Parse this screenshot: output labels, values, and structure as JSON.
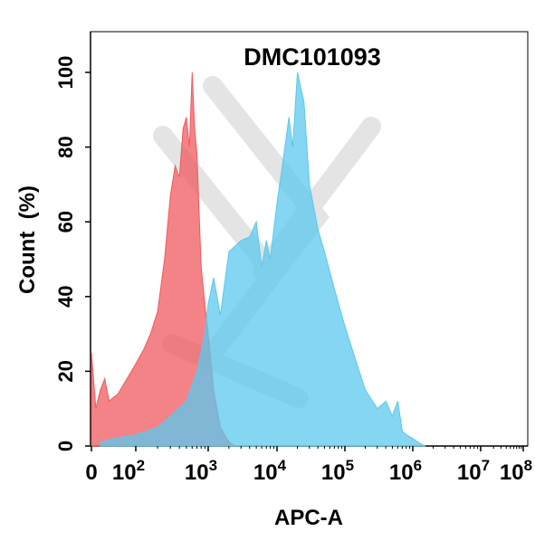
{
  "chart_data": {
    "type": "area",
    "title": "DMC101093",
    "xlabel": "APC-A",
    "ylabel": "Count  (%)",
    "xscale": "biexponential",
    "xlim": [
      0,
      100000000
    ],
    "ylim": [
      0,
      105
    ],
    "grid": false,
    "x_ticks": [
      {
        "label": "0",
        "exp": ""
      },
      {
        "label": "10",
        "exp": "2"
      },
      {
        "label": "10",
        "exp": "3"
      },
      {
        "label": "10",
        "exp": "4"
      },
      {
        "label": "10",
        "exp": "5"
      },
      {
        "label": "10",
        "exp": "6"
      },
      {
        "label": "10",
        "exp": "7"
      },
      {
        "label": "10",
        "exp": "8"
      }
    ],
    "y_ticks": [
      "0",
      "20",
      "40",
      "60",
      "80",
      "100"
    ],
    "series": [
      {
        "color": "#f05a5f",
        "x": [
          0,
          10,
          20,
          30,
          40,
          60,
          80,
          100,
          130,
          160,
          200,
          250,
          300,
          350,
          400,
          450,
          500,
          550,
          600,
          650,
          700,
          750,
          800,
          900,
          1000,
          1200,
          1500,
          2000,
          2500
        ],
        "y": [
          25,
          10,
          15,
          18,
          12,
          14,
          18,
          22,
          26,
          30,
          36,
          50,
          67,
          75,
          72,
          85,
          88,
          80,
          100,
          85,
          78,
          62,
          48,
          38,
          30,
          15,
          5,
          1,
          0
        ]
      },
      {
        "color": "#5bc8ee",
        "x": [
          20,
          50,
          100,
          200,
          300,
          500,
          700,
          900,
          1000,
          1200,
          1500,
          2000,
          3000,
          4000,
          5000,
          6000,
          7000,
          8000,
          9000,
          10000,
          12000,
          15000,
          17000,
          20000,
          25000,
          30000,
          40000,
          50000,
          70000,
          100000,
          150000,
          200000,
          300000,
          400000,
          500000,
          600000,
          700000,
          800000,
          1000000,
          1200000,
          1500000
        ],
        "y": [
          1,
          2,
          3,
          5,
          8,
          12,
          20,
          30,
          38,
          45,
          35,
          52,
          55,
          56,
          60,
          48,
          55,
          50,
          58,
          65,
          75,
          88,
          80,
          100,
          92,
          70,
          58,
          52,
          42,
          32,
          22,
          15,
          10,
          12,
          8,
          12,
          4,
          3,
          2,
          1,
          0
        ]
      }
    ]
  }
}
